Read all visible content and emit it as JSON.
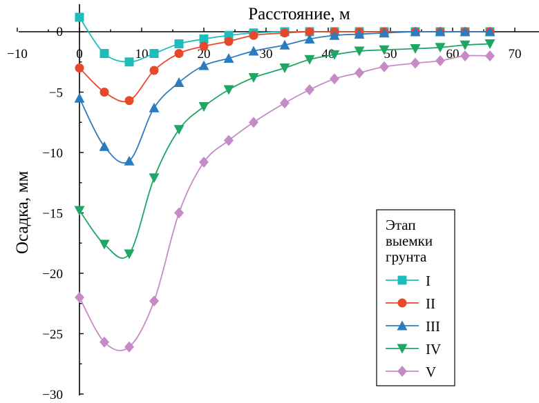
{
  "chart_data": {
    "type": "line",
    "title": "",
    "xlabel": "Расстояние, м",
    "ylabel": "Осадка, мм",
    "xlim": [
      -10,
      75
    ],
    "ylim": [
      -30,
      2
    ],
    "xticks": [
      -10,
      0,
      10,
      20,
      30,
      40,
      50,
      60,
      70
    ],
    "yticks": [
      0,
      -5,
      -10,
      -15,
      -20,
      -25,
      -30
    ],
    "x": [
      0,
      4,
      8,
      12,
      16,
      20,
      24,
      28,
      33,
      37,
      41,
      45,
      49,
      54,
      58,
      62,
      66
    ],
    "legend": {
      "title_lines": [
        "Этап",
        "выемки",
        "грунта"
      ],
      "position": "bottom-right"
    },
    "series": [
      {
        "name": "I",
        "color": "#1fbcbc",
        "marker": "square",
        "values": [
          1.2,
          -1.8,
          -2.5,
          -1.8,
          -1.0,
          -0.6,
          -0.3,
          -0.1,
          0,
          0,
          0,
          0,
          0,
          0,
          0,
          0,
          0
        ]
      },
      {
        "name": "II",
        "color": "#e8472a",
        "marker": "circle",
        "values": [
          -3.0,
          -5.0,
          -5.7,
          -3.2,
          -1.8,
          -1.2,
          -0.8,
          -0.3,
          -0.1,
          0,
          0,
          0,
          0,
          0,
          0,
          0,
          0
        ]
      },
      {
        "name": "III",
        "color": "#2a7bbf",
        "marker": "triangle-up",
        "values": [
          -5.5,
          -9.5,
          -10.7,
          -6.3,
          -4.2,
          -2.8,
          -2.2,
          -1.6,
          -1.1,
          -0.6,
          -0.3,
          -0.2,
          -0.1,
          0,
          0,
          0,
          0
        ]
      },
      {
        "name": "IV",
        "color": "#1fa564",
        "marker": "triangle-down",
        "values": [
          -14.8,
          -17.6,
          -18.4,
          -12.1,
          -8.1,
          -6.2,
          -4.8,
          -3.8,
          -3.0,
          -2.3,
          -1.9,
          -1.6,
          -1.5,
          -1.4,
          -1.3,
          -1.1,
          -1.0
        ]
      },
      {
        "name": "V",
        "color": "#c68ac6",
        "marker": "diamond",
        "values": [
          -22.0,
          -25.7,
          -26.1,
          -22.3,
          -15.0,
          -10.8,
          -9.0,
          -7.5,
          -5.9,
          -4.8,
          -3.9,
          -3.4,
          -2.9,
          -2.6,
          -2.4,
          -2.0,
          -2.0
        ]
      }
    ]
  }
}
